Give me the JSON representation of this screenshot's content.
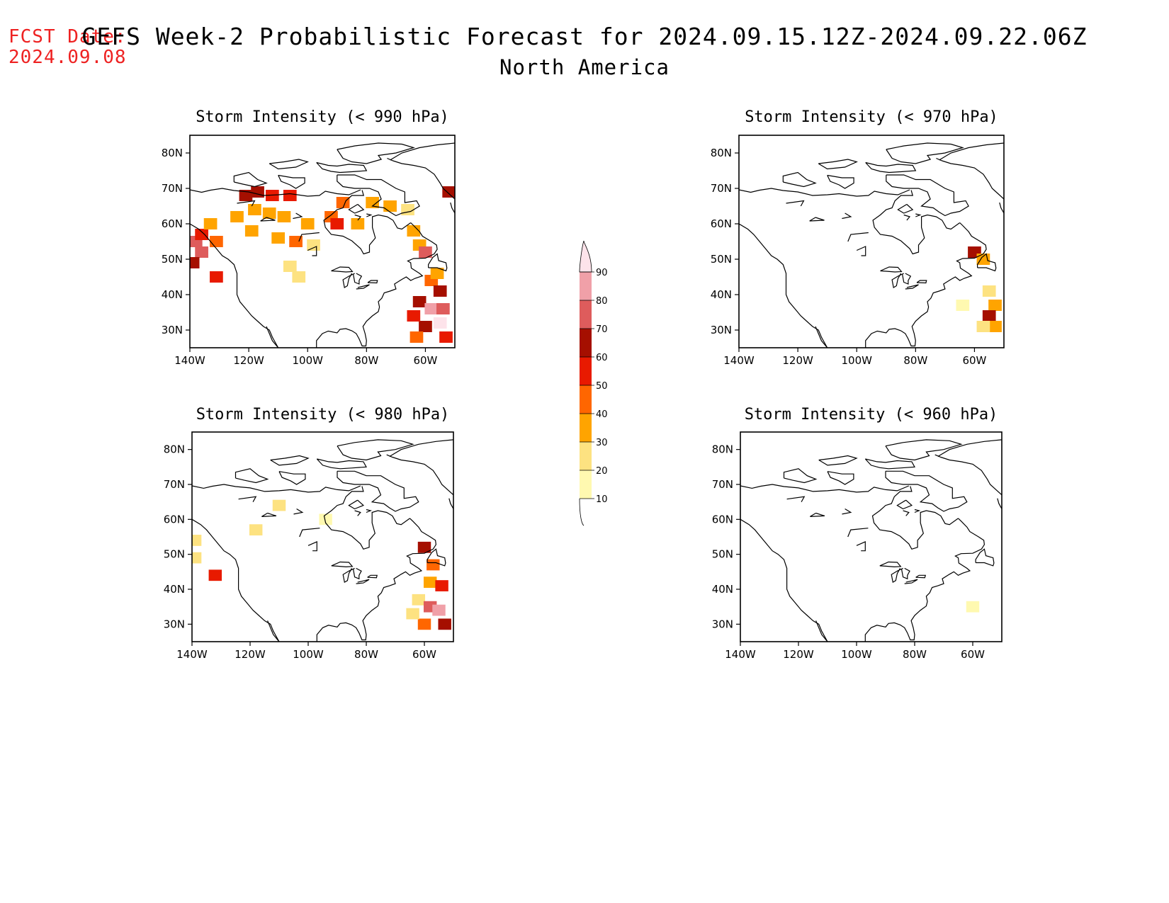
{
  "header": {
    "fcst_label": "FCST Date:",
    "fcst_date": "2024.09.08",
    "title": "GEFS Week-2 Probabilistic Forecast for 2024.09.15.12Z-2024.09.22.06Z",
    "region": "North America"
  },
  "panels": [
    {
      "id": "p990",
      "title": "Storm Intensity (< 990 hPa)",
      "lat_ticks": [
        "80N",
        "70N",
        "60N",
        "50N",
        "40N",
        "30N"
      ],
      "lon_ticks": [
        "140W",
        "120W",
        "100W",
        "80W",
        "60W"
      ]
    },
    {
      "id": "p970",
      "title": "Storm Intensity (< 970 hPa)",
      "lat_ticks": [
        "80N",
        "70N",
        "60N",
        "50N",
        "40N",
        "30N"
      ],
      "lon_ticks": [
        "140W",
        "120W",
        "100W",
        "80W",
        "60W"
      ]
    },
    {
      "id": "p980",
      "title": "Storm Intensity (< 980 hPa)",
      "lat_ticks": [
        "80N",
        "70N",
        "60N",
        "50N",
        "40N",
        "30N"
      ],
      "lon_ticks": [
        "140W",
        "120W",
        "100W",
        "80W",
        "60W"
      ]
    },
    {
      "id": "p960",
      "title": "Storm Intensity (< 960 hPa)",
      "lat_ticks": [
        "80N",
        "70N",
        "60N",
        "50N",
        "40N",
        "30N"
      ],
      "lon_ticks": [
        "140W",
        "120W",
        "100W",
        "80W",
        "60W"
      ]
    }
  ],
  "colorbar": {
    "levels": [
      "10",
      "20",
      "30",
      "40",
      "50",
      "60",
      "70",
      "80",
      "90"
    ],
    "colors": [
      "#fff9b0",
      "#fde281",
      "#ffa400",
      "#ff6600",
      "#e81a00",
      "#a50f00",
      "#de5c5c",
      "#f0a0a8",
      "#fde3ea"
    ]
  },
  "map": {
    "lon_range": [
      -140,
      -50
    ],
    "lat_range": [
      25,
      85
    ],
    "probability_cells": {
      "p990": [
        {
          "lon": -138,
          "lat": 55,
          "level": 6
        },
        {
          "lon": -136,
          "lat": 52,
          "level": 6
        },
        {
          "lon": -139,
          "lat": 49,
          "level": 5
        },
        {
          "lon": -136,
          "lat": 57,
          "level": 4
        },
        {
          "lon": -133,
          "lat": 60,
          "level": 2
        },
        {
          "lon": -131,
          "lat": 55,
          "level": 3
        },
        {
          "lon": -121,
          "lat": 68,
          "level": 5
        },
        {
          "lon": -117,
          "lat": 69,
          "level": 5
        },
        {
          "lon": -112,
          "lat": 68,
          "level": 4
        },
        {
          "lon": -106,
          "lat": 68,
          "level": 4
        },
        {
          "lon": -118,
          "lat": 64,
          "level": 2
        },
        {
          "lon": -113,
          "lat": 63,
          "level": 2
        },
        {
          "lon": -108,
          "lat": 62,
          "level": 2
        },
        {
          "lon": -124,
          "lat": 62,
          "level": 2
        },
        {
          "lon": -119,
          "lat": 58,
          "level": 2
        },
        {
          "lon": -110,
          "lat": 56,
          "level": 2
        },
        {
          "lon": -104,
          "lat": 55,
          "level": 3
        },
        {
          "lon": -98,
          "lat": 54,
          "level": 1
        },
        {
          "lon": -100,
          "lat": 60,
          "level": 2
        },
        {
          "lon": -92,
          "lat": 62,
          "level": 3
        },
        {
          "lon": -88,
          "lat": 66,
          "level": 3
        },
        {
          "lon": -90,
          "lat": 60,
          "level": 4
        },
        {
          "lon": -83,
          "lat": 60,
          "level": 2
        },
        {
          "lon": -78,
          "lat": 66,
          "level": 2
        },
        {
          "lon": -72,
          "lat": 65,
          "level": 2
        },
        {
          "lon": -66,
          "lat": 64,
          "level": 1
        },
        {
          "lon": -64,
          "lat": 58,
          "level": 2
        },
        {
          "lon": -62,
          "lat": 54,
          "level": 2
        },
        {
          "lon": -60,
          "lat": 52,
          "level": 6
        },
        {
          "lon": -52,
          "lat": 69,
          "level": 5
        },
        {
          "lon": -106,
          "lat": 48,
          "level": 1
        },
        {
          "lon": -103,
          "lat": 45,
          "level": 1
        },
        {
          "lon": -131,
          "lat": 45,
          "level": 4
        },
        {
          "lon": -58,
          "lat": 44,
          "level": 3
        },
        {
          "lon": -55,
          "lat": 41,
          "level": 5
        },
        {
          "lon": -62,
          "lat": 38,
          "level": 5
        },
        {
          "lon": -58,
          "lat": 36,
          "level": 7
        },
        {
          "lon": -54,
          "lat": 36,
          "level": 6
        },
        {
          "lon": -55,
          "lat": 32,
          "level": 8
        },
        {
          "lon": -60,
          "lat": 31,
          "level": 5
        },
        {
          "lon": -64,
          "lat": 34,
          "level": 4
        },
        {
          "lon": -63,
          "lat": 28,
          "level": 3
        },
        {
          "lon": -53,
          "lat": 28,
          "level": 4
        },
        {
          "lon": -56,
          "lat": 46,
          "level": 2
        }
      ],
      "p970": [
        {
          "lon": -60,
          "lat": 52,
          "level": 5
        },
        {
          "lon": -57,
          "lat": 50,
          "level": 2
        },
        {
          "lon": -55,
          "lat": 41,
          "level": 1
        },
        {
          "lon": -53,
          "lat": 37,
          "level": 2
        },
        {
          "lon": -55,
          "lat": 34,
          "level": 5
        },
        {
          "lon": -53,
          "lat": 31,
          "level": 2
        },
        {
          "lon": -57,
          "lat": 31,
          "level": 1
        },
        {
          "lon": -64,
          "lat": 37,
          "level": 0
        }
      ],
      "p980": [
        {
          "lon": -139,
          "lat": 54,
          "level": 1
        },
        {
          "lon": -139,
          "lat": 49,
          "level": 1
        },
        {
          "lon": -132,
          "lat": 44,
          "level": 4
        },
        {
          "lon": -118,
          "lat": 57,
          "level": 1
        },
        {
          "lon": -110,
          "lat": 64,
          "level": 1
        },
        {
          "lon": -94,
          "lat": 60,
          "level": 0
        },
        {
          "lon": -60,
          "lat": 52,
          "level": 5
        },
        {
          "lon": -57,
          "lat": 47,
          "level": 3
        },
        {
          "lon": -58,
          "lat": 42,
          "level": 2
        },
        {
          "lon": -54,
          "lat": 41,
          "level": 4
        },
        {
          "lon": -62,
          "lat": 37,
          "level": 1
        },
        {
          "lon": -58,
          "lat": 35,
          "level": 6
        },
        {
          "lon": -55,
          "lat": 34,
          "level": 7
        },
        {
          "lon": -53,
          "lat": 30,
          "level": 5
        },
        {
          "lon": -60,
          "lat": 30,
          "level": 3
        },
        {
          "lon": -64,
          "lat": 33,
          "level": 1
        }
      ],
      "p960": [
        {
          "lon": -60,
          "lat": 35,
          "level": 0
        }
      ]
    }
  }
}
